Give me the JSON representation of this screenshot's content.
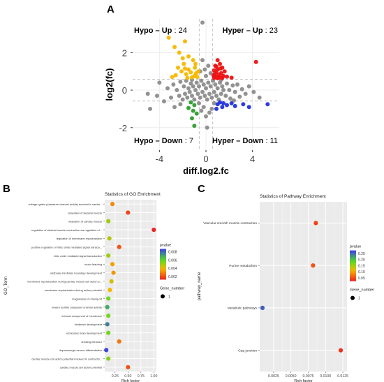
{
  "panels": {
    "a": {
      "letter": "A"
    },
    "b": {
      "letter": "B"
    },
    "c": {
      "letter": "C"
    }
  },
  "chart_data": [
    {
      "id": "A",
      "type": "scatter",
      "title": "",
      "xlabel": "diff.log2.fc",
      "ylabel": "log2(fc)",
      "xlim": [
        -6.3,
        6.3
      ],
      "ylim": [
        -3.2,
        3.8
      ],
      "xticks": [
        -4,
        0,
        4
      ],
      "yticks": [
        -2,
        0,
        2
      ],
      "grid": true,
      "thresholds": {
        "x": [
          -0.58,
          0.58
        ],
        "y": [
          -0.58,
          0.58
        ]
      },
      "quadrant_labels": [
        {
          "name": "Hypo – Up",
          "count": "24",
          "position": "top-left"
        },
        {
          "name": "Hyper – Up",
          "count": "23",
          "position": "top-right"
        },
        {
          "name": "Hypo – Down",
          "count": "7",
          "position": "bottom-left"
        },
        {
          "name": "Hyper – Down",
          "count": "11",
          "position": "bottom-right"
        }
      ],
      "colors": {
        "hypo_up": "#f5b800",
        "hyper_up": "#ee1111",
        "hypo_down": "#2e9e2e",
        "hyper_down": "#2233dd",
        "ns": "#8c8c8c"
      },
      "series": [
        {
          "name": "Hypo – Up",
          "color": "#f5b800",
          "points": [
            [
              -3.2,
              2.8
            ],
            [
              -2.7,
              2.3
            ],
            [
              -2.3,
              2.0
            ],
            [
              -1.8,
              2.6
            ],
            [
              -2.0,
              1.7
            ],
            [
              -1.5,
              1.8
            ],
            [
              -1.9,
              1.4
            ],
            [
              -2.4,
              1.2
            ],
            [
              -1.1,
              1.6
            ],
            [
              -1.5,
              1.1
            ],
            [
              -2.1,
              1.0
            ],
            [
              -1.3,
              0.95
            ],
            [
              -0.95,
              1.2
            ],
            [
              -1.7,
              0.85
            ],
            [
              -0.85,
              0.9
            ],
            [
              -1.0,
              0.75
            ],
            [
              -1.6,
              0.65
            ],
            [
              -0.75,
              0.7
            ],
            [
              -2.6,
              0.8
            ],
            [
              -1.2,
              0.68
            ],
            [
              -0.9,
              1.4
            ],
            [
              -1.8,
              1.15
            ],
            [
              -0.65,
              1.0
            ],
            [
              -2.9,
              0.7
            ]
          ]
        },
        {
          "name": "Hyper – Up",
          "color": "#ee1111",
          "points": [
            [
              4.3,
              1.5
            ],
            [
              1.0,
              1.6
            ],
            [
              1.2,
              1.4
            ],
            [
              0.8,
              1.3
            ],
            [
              1.4,
              1.2
            ],
            [
              1.0,
              1.1
            ],
            [
              0.7,
              1.05
            ],
            [
              1.6,
              1.0
            ],
            [
              0.9,
              0.95
            ],
            [
              1.3,
              0.9
            ],
            [
              0.75,
              0.85
            ],
            [
              1.1,
              0.8
            ],
            [
              0.65,
              0.78
            ],
            [
              1.5,
              0.75
            ],
            [
              1.8,
              0.72
            ],
            [
              0.85,
              0.7
            ],
            [
              1.2,
              0.68
            ],
            [
              0.7,
              0.65
            ],
            [
              2.2,
              0.66
            ],
            [
              1.4,
              0.64
            ],
            [
              1.0,
              0.63
            ],
            [
              0.9,
              1.25
            ],
            [
              1.25,
              1.15
            ]
          ]
        },
        {
          "name": "Hypo – Down",
          "color": "#2e9e2e",
          "points": [
            [
              -1.3,
              -0.65
            ],
            [
              -1.0,
              -0.8
            ],
            [
              -1.5,
              -0.95
            ],
            [
              -1.1,
              -1.1
            ],
            [
              -0.8,
              -1.25
            ],
            [
              -1.2,
              -1.5
            ],
            [
              -1.0,
              -1.9
            ]
          ]
        },
        {
          "name": "Hyper – Down",
          "color": "#2233dd",
          "points": [
            [
              1.2,
              -0.65
            ],
            [
              1.5,
              -0.7
            ],
            [
              1.0,
              -0.75
            ],
            [
              1.8,
              -0.8
            ],
            [
              2.2,
              -0.7
            ],
            [
              1.4,
              -0.9
            ],
            [
              2.5,
              -0.85
            ],
            [
              3.2,
              -0.75
            ],
            [
              3.7,
              -0.9
            ],
            [
              5.3,
              -0.75
            ],
            [
              0.9,
              -1.0
            ]
          ]
        },
        {
          "name": "",
          "color": "#8c8c8c",
          "points": [
            [
              -5.0,
              -0.2
            ],
            [
              -4.8,
              -1.0
            ],
            [
              -4.2,
              -0.3
            ],
            [
              -4.0,
              0.4
            ],
            [
              -3.6,
              -0.6
            ],
            [
              -3.3,
              0.1
            ],
            [
              -3.0,
              -0.4
            ],
            [
              -2.8,
              0.3
            ],
            [
              -2.7,
              -0.9
            ],
            [
              -2.5,
              0.0
            ],
            [
              -2.3,
              -0.3
            ],
            [
              -2.2,
              0.45
            ],
            [
              -2.0,
              -0.5
            ],
            [
              -1.9,
              0.2
            ],
            [
              -1.8,
              -0.2
            ],
            [
              -1.7,
              0.5
            ],
            [
              -1.6,
              -0.4
            ],
            [
              -1.5,
              0.1
            ],
            [
              -1.4,
              -0.1
            ],
            [
              -1.3,
              0.35
            ],
            [
              -1.2,
              -0.3
            ],
            [
              -1.1,
              0.2
            ],
            [
              -1.0,
              -0.5
            ],
            [
              -0.9,
              0.0
            ],
            [
              -0.8,
              0.4
            ],
            [
              -0.7,
              -0.2
            ],
            [
              -0.6,
              0.2
            ],
            [
              -0.5,
              -0.4
            ],
            [
              -0.4,
              0.5
            ],
            [
              -0.3,
              -0.1
            ],
            [
              -0.2,
              0.3
            ],
            [
              -0.1,
              -0.3
            ],
            [
              0.0,
              0.1
            ],
            [
              0.1,
              -0.5
            ],
            [
              0.2,
              0.4
            ],
            [
              0.3,
              -0.2
            ],
            [
              0.4,
              0.2
            ],
            [
              0.5,
              -0.4
            ],
            [
              0.6,
              0.5
            ],
            [
              0.7,
              -0.1
            ],
            [
              0.8,
              0.3
            ],
            [
              0.9,
              -0.3
            ],
            [
              1.0,
              0.1
            ],
            [
              1.1,
              -0.5
            ],
            [
              1.2,
              0.4
            ],
            [
              1.3,
              -0.2
            ],
            [
              1.4,
              0.2
            ],
            [
              1.5,
              0.0
            ],
            [
              1.7,
              -0.3
            ],
            [
              1.8,
              0.35
            ],
            [
              2.0,
              0.0
            ],
            [
              2.1,
              -0.45
            ],
            [
              2.3,
              0.25
            ],
            [
              2.5,
              -0.1
            ],
            [
              2.7,
              0.3
            ],
            [
              2.9,
              -0.35
            ],
            [
              3.1,
              0.05
            ],
            [
              3.4,
              -0.2
            ],
            [
              3.7,
              0.2
            ],
            [
              4.1,
              -0.1
            ],
            [
              4.6,
              -0.4
            ],
            [
              -0.3,
              1.6
            ],
            [
              0.2,
              1.3
            ],
            [
              -0.1,
              1.1
            ],
            [
              0.4,
              0.9
            ],
            [
              -0.5,
              1.0
            ],
            [
              0.0,
              0.75
            ],
            [
              -0.2,
              -0.9
            ],
            [
              0.3,
              -1.2
            ],
            [
              0.0,
              -1.4
            ],
            [
              -0.4,
              -1.1
            ],
            [
              0.5,
              -1.0
            ],
            [
              0.1,
              -2.0
            ],
            [
              -0.3,
              3.6
            ],
            [
              -0.6,
              -0.7
            ],
            [
              0.7,
              -0.7
            ],
            [
              -1.2,
              0.55
            ],
            [
              1.3,
              0.55
            ],
            [
              -2.2,
              -0.75
            ],
            [
              2.4,
              -0.55
            ]
          ]
        }
      ]
    },
    {
      "id": "B",
      "type": "scatter",
      "title": "Statistics of GO Enrichment",
      "xlabel": "Rich factor",
      "ylabel": "GO_Term",
      "xlim": [
        0.05,
        1.05
      ],
      "xticks": [
        "0.25",
        "0.50",
        "0.75",
        "1.00"
      ],
      "grid": true,
      "legend_position": "right",
      "pvalue_legend": {
        "title": "pvalue",
        "ticks": [
          "0.008",
          "0.006",
          "0.004",
          "0.002"
        ],
        "range": [
          0.0005,
          0.009
        ]
      },
      "size_legend": {
        "title": "Gene_number",
        "label": "1"
      },
      "categories": [
        "voltage−gated potassium channel activity involved in cardia...",
        "relaxation of skeletal muscle",
        "relaxation of cardiac muscle",
        "regulation of skeletal muscle contraction via regulation of...",
        "regulation of membrane repolarization",
        "positive regulation of nitric oxide mediated signal transdu...",
        "nitric oxide mediated signal transduction",
        "motor learning",
        "midbrain−hindbrain boundary development",
        "membrane repolarization during cardiac muscle cell action p...",
        "membrane repolarization during action potential",
        "magnesium ion transport",
        "inward rectifier potassium channel activity",
        "intrinsic component of membrane",
        "hindbrain development",
        "embryonic brain development",
        "drinking behavior",
        "dopaminergic neuron differentiation",
        "cardiac muscle cell action potential involved in contractio...",
        "cardiac muscle cell action potential"
      ],
      "rich_factor": [
        0.2,
        0.5,
        0.12,
        1.0,
        0.14,
        0.33,
        0.12,
        0.2,
        0.22,
        0.18,
        0.15,
        0.12,
        0.1,
        0.12,
        0.1,
        0.12,
        0.33,
        0.08,
        0.12,
        0.5
      ],
      "pvalue": [
        0.0025,
        0.0012,
        0.0048,
        0.0005,
        0.0045,
        0.0015,
        0.0048,
        0.003,
        0.0028,
        0.004,
        0.0035,
        0.0055,
        0.007,
        0.0055,
        0.0078,
        0.0055,
        0.0022,
        0.0088,
        0.0052,
        0.0015
      ]
    },
    {
      "id": "C",
      "type": "scatter",
      "title": "Statistics of Pathway Enrichment",
      "xlabel": "Rich factor",
      "ylabel": "pathway_name",
      "xlim": [
        0.0005,
        0.0131
      ],
      "xticks": [
        "0.0025",
        "0.0050",
        "0.0075",
        "0.0100",
        "0.0125"
      ],
      "grid": true,
      "legend_position": "right",
      "pvalue_legend": {
        "title": "pvalue",
        "ticks": [
          "0.25",
          "0.20",
          "0.15",
          "0.10",
          "0.05"
        ],
        "range": [
          0.02,
          0.28
        ]
      },
      "size_legend": {
        "title": "Gene_number",
        "label": "1"
      },
      "categories": [
        "Vascular smooth muscle contraction",
        "Purine metabolism",
        "Metabolic pathways",
        "Gap junction"
      ],
      "rich_factor": [
        0.0086,
        0.0082,
        0.0009,
        0.0122
      ],
      "pvalue": [
        0.04,
        0.05,
        0.26,
        0.03
      ]
    }
  ]
}
